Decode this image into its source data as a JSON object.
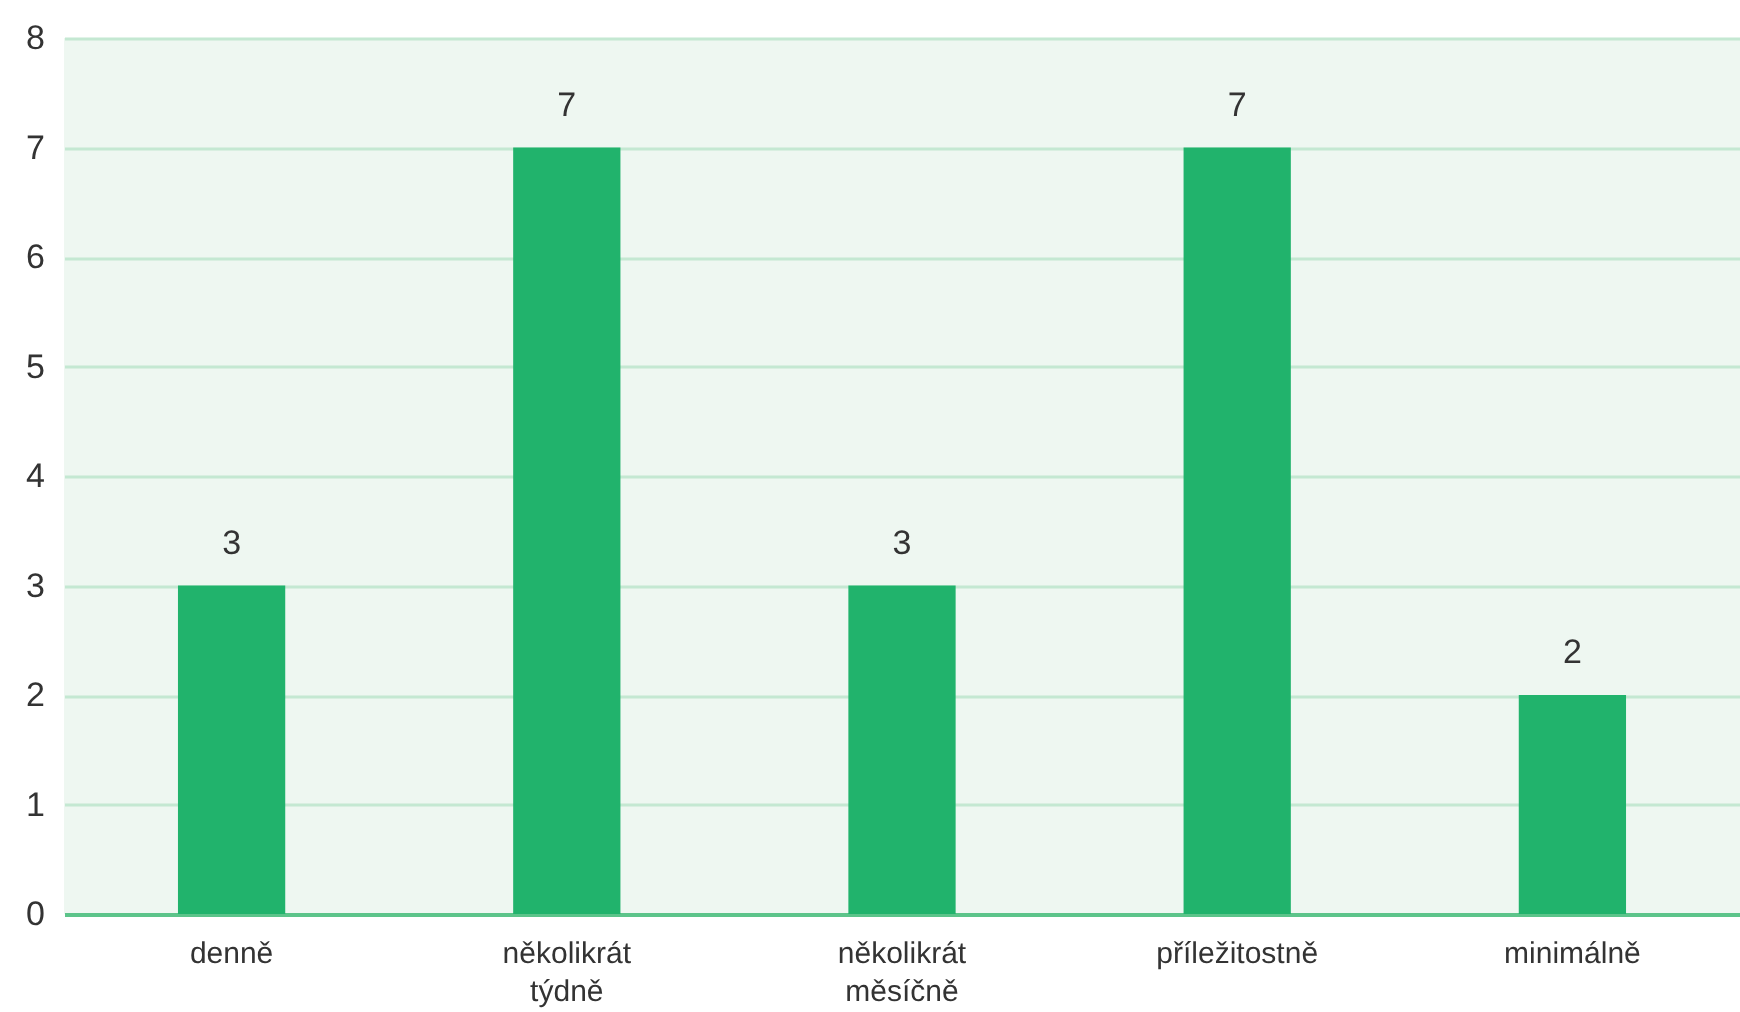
{
  "chart_data": {
    "type": "bar",
    "categories": [
      "denně",
      "několikrát týdně",
      "několikrát měsíčně",
      "příležitostně",
      "minimálně"
    ],
    "values": [
      3,
      7,
      3,
      7,
      2
    ],
    "color": "#21b36c",
    "ylim": [
      0,
      8
    ],
    "yticks": [
      0,
      1,
      2,
      3,
      4,
      5,
      6,
      7,
      8
    ],
    "grid": "y",
    "data_labels": true
  }
}
